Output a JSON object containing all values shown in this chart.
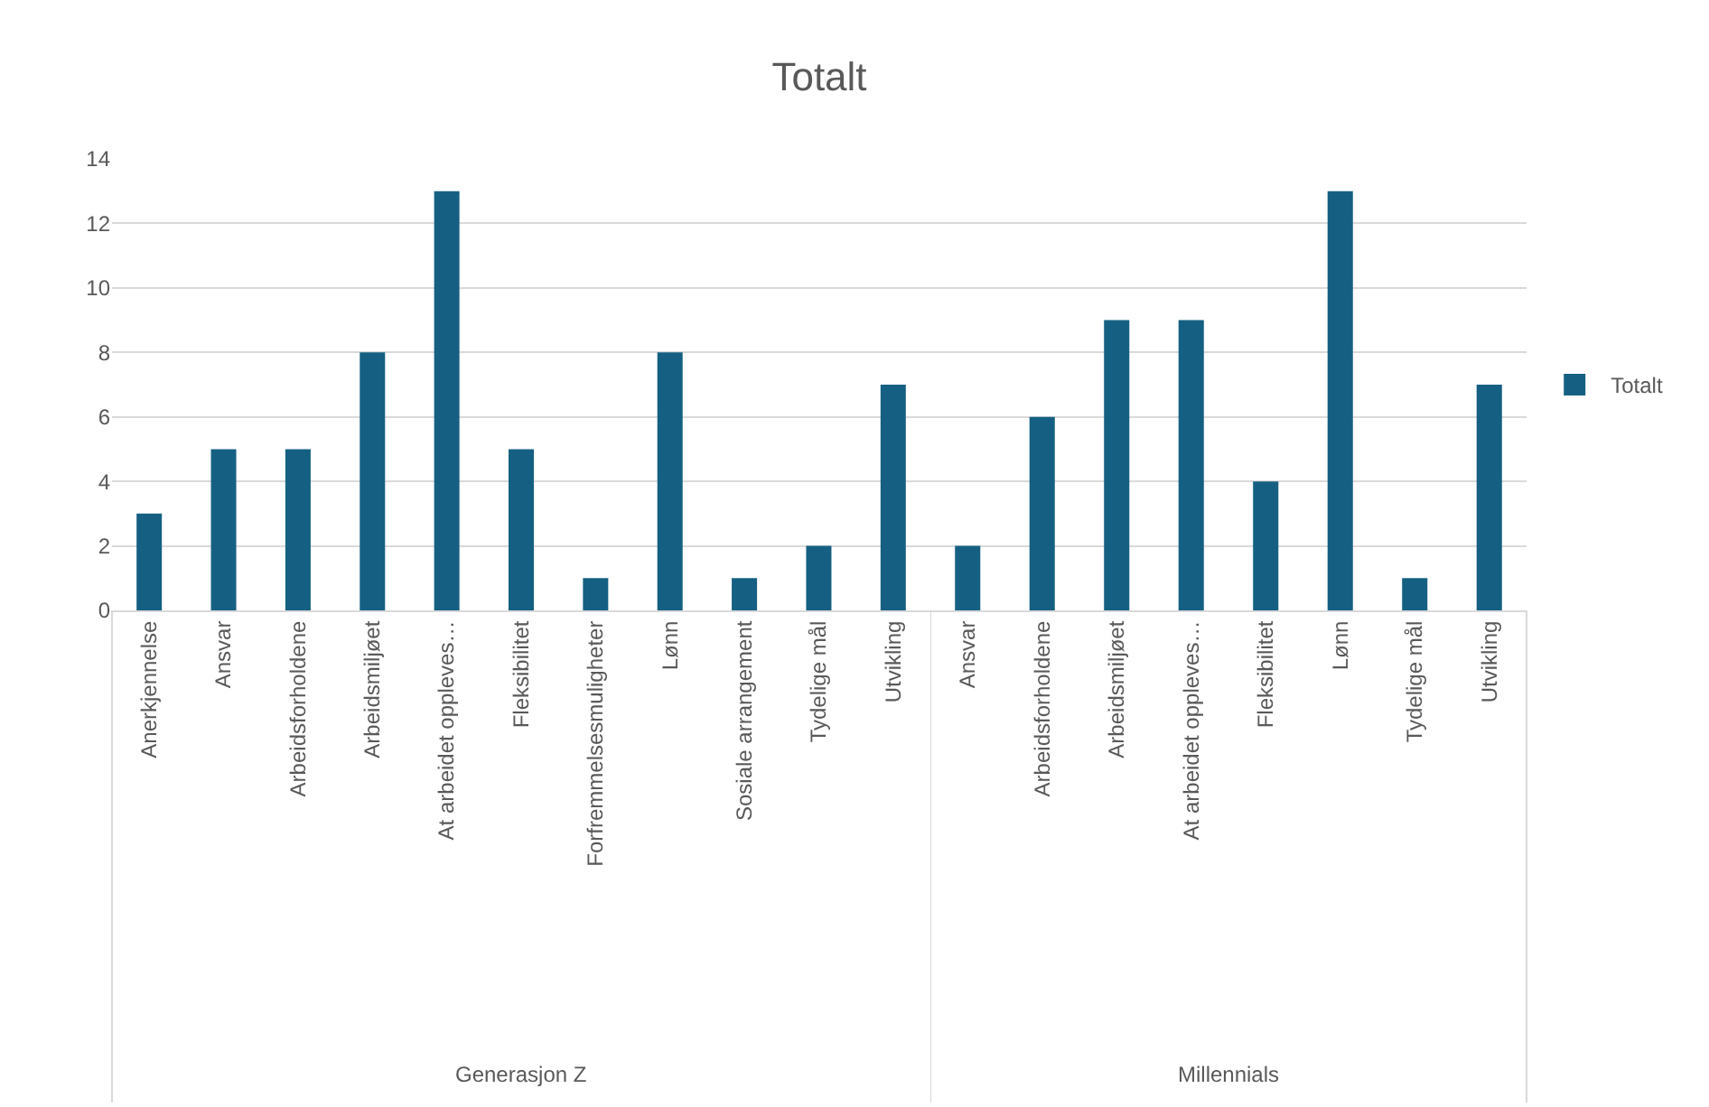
{
  "chart_data": [
    {
      "type": "bar",
      "title": "Totalt",
      "xlabel": "Generasjon Z",
      "categories": [
        "Anerkjennelse",
        "Ansvar",
        "Arbeidsforholdene",
        "Arbeidsmiljøet",
        "At arbeidet oppleves…",
        "Fleksibilitet",
        "Forfremmelsesmuligheter",
        "Lønn",
        "Sosiale arrangement",
        "Tydelige mål",
        "Utvikling"
      ],
      "series": [
        {
          "color": "#156082",
          "values": [
            3,
            5,
            5,
            8,
            13,
            5,
            1,
            8,
            1,
            2,
            7
          ]
        }
      ],
      "ylim": [
        0,
        14
      ],
      "yticks": [
        0,
        2,
        4,
        6,
        8,
        10,
        12,
        14
      ],
      "grid": "y"
    },
    {
      "type": "bar",
      "xlabel": "Millennials",
      "categories": [
        "Ansvar",
        "Arbeidsforholdene",
        "Arbeidsmiljøet",
        "At arbeidet oppleves…",
        "Fleksibilitet",
        "Lønn",
        "Tydelige mål",
        "Utvikling"
      ],
      "series": [
        {
          "name": "Totalt",
          "color": "#156082",
          "values": [
            2,
            6,
            9,
            9,
            4,
            13,
            1,
            7
          ]
        }
      ],
      "ylim": [
        0,
        14
      ],
      "yticks": [
        0,
        2,
        4,
        6,
        8,
        10,
        12,
        14
      ],
      "grid": "y",
      "legend": "right",
      "tick_labels": "x"
    }
  ]
}
